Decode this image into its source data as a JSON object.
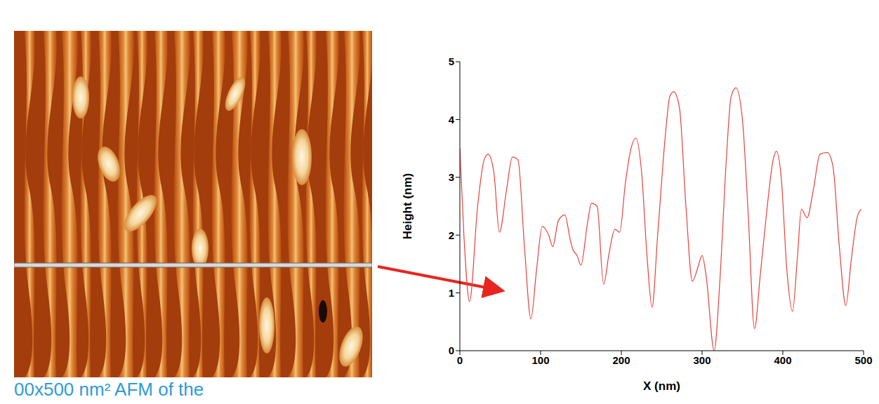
{
  "chart_data": {
    "type": "line",
    "x_label": "X (nm)",
    "y_label": "Height (nm)",
    "annotations": [
      "00x500 nm² AFM of the"
    ],
    "color": "#e8413c",
    "xlim": [
      0,
      500
    ],
    "xticks": [
      0,
      100,
      200,
      300,
      400,
      500
    ],
    "ylim": [
      0,
      5
    ],
    "yticks": [
      0,
      1,
      2,
      3,
      4,
      5
    ],
    "x": [
      0,
      5,
      12,
      22,
      30,
      35,
      42,
      49,
      58,
      65,
      72,
      80,
      88,
      95,
      102,
      110,
      115,
      122,
      130,
      137,
      140,
      145,
      150,
      158,
      163,
      170,
      178,
      185,
      192,
      198,
      205,
      212,
      218,
      225,
      232,
      238,
      245,
      255,
      260,
      265,
      272,
      280,
      288,
      295,
      300,
      305,
      315,
      322,
      330,
      336,
      342,
      350,
      357,
      365,
      372,
      380,
      388,
      392,
      398,
      405,
      412,
      418,
      423,
      430,
      438,
      446,
      455,
      462,
      470,
      478,
      485,
      492,
      497
    ],
    "values": [
      3.5,
      2.0,
      0.85,
      2.5,
      3.3,
      3.4,
      3.1,
      2.05,
      2.8,
      3.35,
      3.3,
      1.8,
      0.55,
      1.4,
      2.15,
      2.0,
      1.8,
      2.25,
      2.35,
      1.9,
      1.75,
      1.65,
      1.48,
      2.2,
      2.55,
      2.5,
      1.15,
      1.7,
      2.1,
      2.05,
      2.9,
      3.5,
      3.68,
      3.1,
      1.6,
      0.75,
      2.0,
      3.8,
      4.4,
      4.48,
      4.2,
      2.5,
      1.2,
      1.45,
      1.65,
      1.3,
      0.0,
      1.2,
      3.3,
      4.4,
      4.55,
      4.0,
      2.4,
      0.38,
      1.3,
      2.4,
      3.3,
      3.45,
      3.0,
      1.4,
      0.68,
      1.6,
      2.45,
      2.3,
      2.8,
      3.4,
      3.43,
      3.2,
      1.8,
      0.78,
      1.6,
      2.3,
      2.45
    ]
  }
}
